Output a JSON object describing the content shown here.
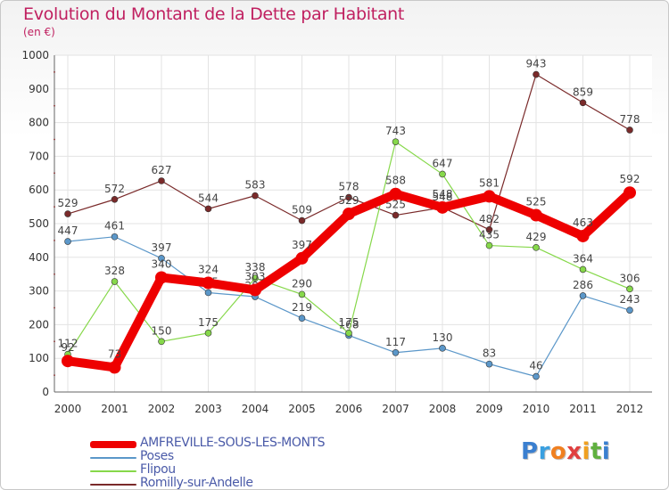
{
  "title": "Evolution du Montant de la Dette par Habitant",
  "unit": "(en €)",
  "logo": {
    "text": "Proxiti",
    "letters": [
      "P",
      "r",
      "o",
      "x",
      "i",
      "t",
      "i"
    ],
    "colors": [
      "#3a7fd0",
      "#3aa0e0",
      "#f08020",
      "#e04040",
      "#f0a020",
      "#60b040",
      "#3a7fd0"
    ]
  },
  "chart_data": {
    "type": "line",
    "x": [
      "2000",
      "2001",
      "2002",
      "2003",
      "2004",
      "2005",
      "2006",
      "2007",
      "2008",
      "2009",
      "2010",
      "2011",
      "2012"
    ],
    "ylim": [
      0,
      1000
    ],
    "yticks": [
      "0",
      "100",
      "200",
      "300",
      "400",
      "500",
      "600",
      "700",
      "800",
      "900",
      "1000"
    ],
    "grid": true,
    "legend_position": "bottom-left",
    "series": [
      {
        "name": "Romilly-sur-Andelle",
        "color": "#7a2a2a",
        "width": "thin",
        "values": [
          529,
          572,
          627,
          544,
          583,
          509,
          578,
          525,
          548,
          482,
          943,
          859,
          778
        ],
        "labels": [
          "529",
          "572",
          "627",
          "544",
          "583",
          "509",
          "578",
          "525",
          "548",
          "482",
          "943",
          "859",
          "778"
        ]
      },
      {
        "name": "Poses",
        "color": "#5b97c9",
        "width": "thin",
        "values": [
          447,
          461,
          397,
          295,
          283,
          219,
          168,
          117,
          130,
          83,
          46,
          286,
          243
        ],
        "labels": [
          "447",
          "461",
          "397",
          "295",
          "283",
          "219",
          "168",
          "117",
          "130",
          "83",
          "46",
          "286",
          "243"
        ]
      },
      {
        "name": "Flipou",
        "color": "#86d84a",
        "width": "thin",
        "values": [
          112,
          328,
          150,
          175,
          338,
          290,
          175,
          743,
          647,
          435,
          429,
          364,
          306
        ],
        "labels": [
          "112",
          "328",
          "150",
          "175",
          "338",
          "290",
          "175",
          "743",
          "647",
          "435",
          "429",
          "364",
          "306"
        ]
      },
      {
        "name": "AMFREVILLE-SOUS-LES-MONTS",
        "color": "#ee0000",
        "width": "thick",
        "values": [
          92,
          73,
          340,
          324,
          303,
          397,
          529,
          588,
          548,
          581,
          525,
          463,
          592
        ],
        "labels": [
          "92",
          "73",
          "340",
          "324",
          "303",
          "397",
          "529",
          "588",
          "548",
          "581",
          "525",
          "463",
          "592"
        ]
      }
    ],
    "legend_order": [
      "AMFREVILLE-SOUS-LES-MONTS",
      "Poses",
      "Flipou",
      "Romilly-sur-Andelle"
    ]
  }
}
